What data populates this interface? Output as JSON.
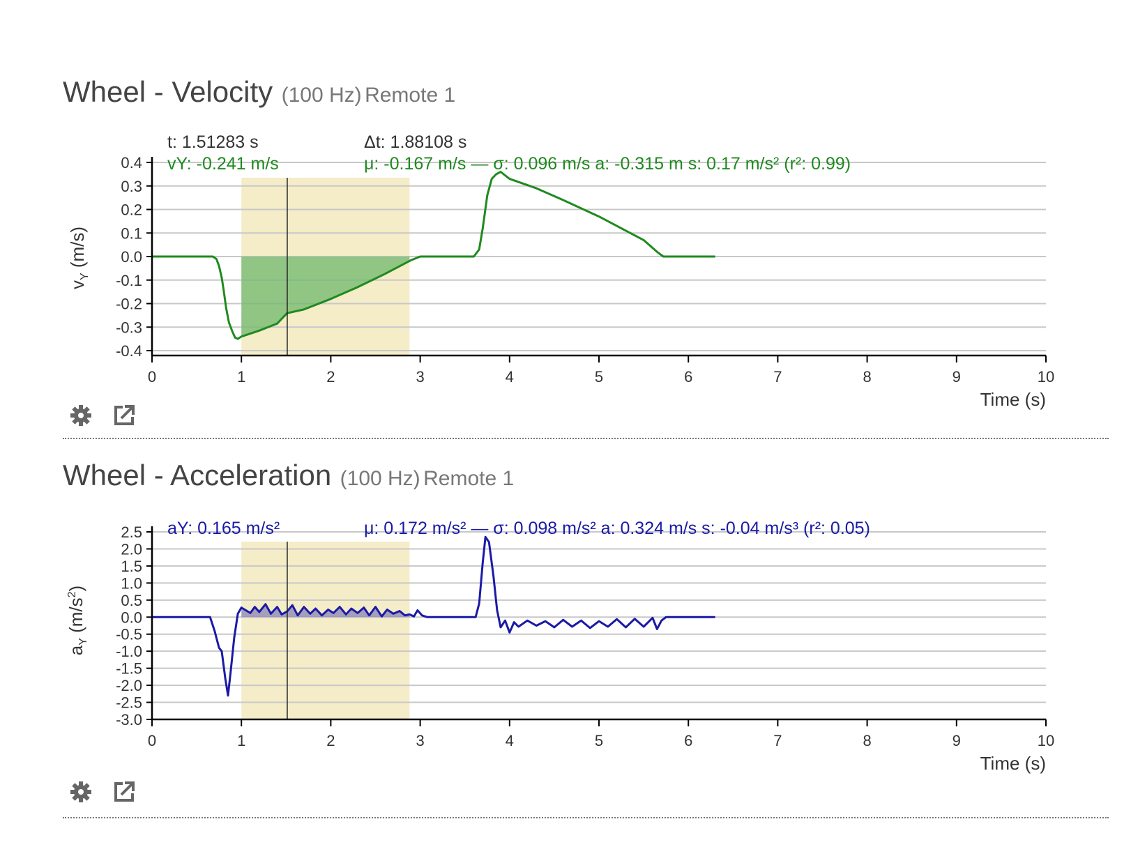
{
  "panels": [
    {
      "title": "Wheel - Velocity",
      "rate": "(100 Hz)",
      "source": "Remote 1",
      "settings_icon": "gear-icon",
      "export_icon": "export-icon"
    },
    {
      "title": "Wheel - Acceleration",
      "rate": "(100 Hz)",
      "source": "Remote 1",
      "settings_icon": "gear-icon",
      "export_icon": "export-icon"
    }
  ],
  "colors": {
    "velocity": "#1f8a1f",
    "velocity_fill": "#6db86d",
    "acceleration": "#1a1aa6",
    "acceleration_fill": "#8a86b8",
    "selection": "#f5ecc8",
    "grid": "#c8c8c8",
    "axis": "#000000",
    "cursor": "#222222",
    "label": "#333333"
  },
  "chart_data": [
    {
      "type": "line",
      "xlabel": "Time (s)",
      "ylabel": "vY (m/s)",
      "ylabel_main": "v",
      "ylabel_sub": "Y",
      "ylabel_unit": " (m/s)",
      "xlim": [
        0,
        10
      ],
      "ylim": [
        -0.42,
        0.42
      ],
      "x_ticks": [
        "0",
        "1",
        "2",
        "3",
        "4",
        "5",
        "6",
        "7",
        "8",
        "9",
        "10"
      ],
      "y_ticks": [
        {
          "value": 0.4,
          "label": "0.4"
        },
        {
          "value": 0.3,
          "label": "0.3"
        },
        {
          "value": 0.2,
          "label": "0.2"
        },
        {
          "value": 0.1,
          "label": "0.1"
        },
        {
          "value": 0.0,
          "label": "0.0"
        },
        {
          "value": -0.1,
          "label": "-0.1"
        },
        {
          "value": -0.2,
          "label": "-0.2"
        },
        {
          "value": -0.3,
          "label": "-0.3"
        },
        {
          "value": -0.4,
          "label": "-0.4"
        }
      ],
      "grid": true,
      "selection": {
        "start": 1.0,
        "end": 2.88108
      },
      "cursor_x": 1.51283,
      "readout": {
        "cursor_time": "t: 1.51283 s",
        "cursor_value": "vY: -0.241 m/s",
        "delta_time": "Δt: 1.88108 s",
        "stats": "μ: -0.167 m/s — σ: 0.096 m/s   a: -0.315 m   s: 0.17 m/s² (r²: 0.99)"
      },
      "series": [
        {
          "points": [
            [
              0,
              0
            ],
            [
              0.5,
              0
            ],
            [
              0.68,
              0
            ],
            [
              0.72,
              -0.01
            ],
            [
              0.75,
              -0.04
            ],
            [
              0.78,
              -0.09
            ],
            [
              0.8,
              -0.14
            ],
            [
              0.83,
              -0.22
            ],
            [
              0.86,
              -0.28
            ],
            [
              0.9,
              -0.32
            ],
            [
              0.93,
              -0.345
            ],
            [
              0.96,
              -0.35
            ],
            [
              1.0,
              -0.34
            ],
            [
              1.2,
              -0.315
            ],
            [
              1.4,
              -0.285
            ],
            [
              1.51,
              -0.241
            ],
            [
              1.7,
              -0.225
            ],
            [
              2.0,
              -0.18
            ],
            [
              2.3,
              -0.13
            ],
            [
              2.6,
              -0.075
            ],
            [
              2.8,
              -0.035
            ],
            [
              2.9,
              -0.015
            ],
            [
              3.0,
              0
            ],
            [
              3.6,
              0
            ],
            [
              3.66,
              0.03
            ],
            [
              3.7,
              0.12
            ],
            [
              3.75,
              0.26
            ],
            [
              3.8,
              0.33
            ],
            [
              3.85,
              0.35
            ],
            [
              3.9,
              0.36
            ],
            [
              4.0,
              0.33
            ],
            [
              4.3,
              0.29
            ],
            [
              4.6,
              0.24
            ],
            [
              5.0,
              0.17
            ],
            [
              5.3,
              0.11
            ],
            [
              5.5,
              0.07
            ],
            [
              5.65,
              0.02
            ],
            [
              5.72,
              0
            ],
            [
              6.3,
              0
            ]
          ]
        }
      ]
    },
    {
      "type": "line",
      "xlabel": "Time (s)",
      "ylabel": "aY (m/s2)",
      "ylabel_main": "a",
      "ylabel_sub": "Y",
      "ylabel_unit": " (m/s",
      "ylabel_sup": "2",
      "ylabel_close": ")",
      "xlim": [
        0,
        10
      ],
      "ylim": [
        -3.0,
        2.8
      ],
      "x_ticks": [
        "0",
        "1",
        "2",
        "3",
        "4",
        "5",
        "6",
        "7",
        "8",
        "9",
        "10"
      ],
      "y_ticks": [
        {
          "value": 2.5,
          "label": "2.5"
        },
        {
          "value": 2.0,
          "label": "2.0"
        },
        {
          "value": 1.5,
          "label": "1.5"
        },
        {
          "value": 1.0,
          "label": "1.0"
        },
        {
          "value": 0.5,
          "label": "0.5"
        },
        {
          "value": 0.0,
          "label": "0.0"
        },
        {
          "value": -0.5,
          "label": "-0.5"
        },
        {
          "value": -1.0,
          "label": "-1.0"
        },
        {
          "value": -1.5,
          "label": "-1.5"
        },
        {
          "value": -2.0,
          "label": "-2.0"
        },
        {
          "value": -2.5,
          "label": "-2.5"
        },
        {
          "value": -3.0,
          "label": "-3.0"
        }
      ],
      "grid": true,
      "selection": {
        "start": 1.0,
        "end": 2.88108
      },
      "cursor_x": 1.51283,
      "readout": {
        "cursor_time": "t: 1.51283 s",
        "cursor_value": "aY: 0.165 m/s²",
        "delta_time": "Δt: 1.88108 s",
        "stats": "μ: 0.172 m/s² — σ: 0.098 m/s²   a: 0.324 m/s   s: -0.04 m/s³ (r²: 0.05)"
      },
      "series": [
        {
          "points": [
            [
              0,
              0
            ],
            [
              0.6,
              0
            ],
            [
              0.65,
              0
            ],
            [
              0.7,
              -0.4
            ],
            [
              0.75,
              -0.9
            ],
            [
              0.78,
              -1.0
            ],
            [
              0.82,
              -1.8
            ],
            [
              0.85,
              -2.3
            ],
            [
              0.88,
              -1.6
            ],
            [
              0.92,
              -0.6
            ],
            [
              0.96,
              0.1
            ],
            [
              1.0,
              0.28
            ],
            [
              1.05,
              0.2
            ],
            [
              1.1,
              0.12
            ],
            [
              1.15,
              0.3
            ],
            [
              1.2,
              0.15
            ],
            [
              1.27,
              0.38
            ],
            [
              1.33,
              0.1
            ],
            [
              1.4,
              0.3
            ],
            [
              1.45,
              0.08
            ],
            [
              1.51,
              0.165
            ],
            [
              1.57,
              0.35
            ],
            [
              1.63,
              0.05
            ],
            [
              1.7,
              0.3
            ],
            [
              1.77,
              0.1
            ],
            [
              1.83,
              0.25
            ],
            [
              1.9,
              0.05
            ],
            [
              1.97,
              0.22
            ],
            [
              2.03,
              0.12
            ],
            [
              2.1,
              0.3
            ],
            [
              2.17,
              0.08
            ],
            [
              2.23,
              0.25
            ],
            [
              2.3,
              0.12
            ],
            [
              2.37,
              0.28
            ],
            [
              2.43,
              0.05
            ],
            [
              2.5,
              0.3
            ],
            [
              2.57,
              0.02
            ],
            [
              2.63,
              0.22
            ],
            [
              2.7,
              0.1
            ],
            [
              2.77,
              0.18
            ],
            [
              2.83,
              0.05
            ],
            [
              2.88,
              0.08
            ],
            [
              2.93,
              0.02
            ],
            [
              2.97,
              0.2
            ],
            [
              3.02,
              0.05
            ],
            [
              3.08,
              0
            ],
            [
              3.62,
              0
            ],
            [
              3.66,
              0.4
            ],
            [
              3.7,
              1.6
            ],
            [
              3.73,
              2.35
            ],
            [
              3.77,
              2.2
            ],
            [
              3.82,
              1.2
            ],
            [
              3.86,
              0.2
            ],
            [
              3.9,
              -0.3
            ],
            [
              3.95,
              -0.1
            ],
            [
              4.0,
              -0.45
            ],
            [
              4.05,
              -0.15
            ],
            [
              4.1,
              -0.28
            ],
            [
              4.2,
              -0.1
            ],
            [
              4.3,
              -0.25
            ],
            [
              4.4,
              -0.12
            ],
            [
              4.5,
              -0.3
            ],
            [
              4.6,
              -0.08
            ],
            [
              4.7,
              -0.28
            ],
            [
              4.8,
              -0.1
            ],
            [
              4.9,
              -0.32
            ],
            [
              5.0,
              -0.12
            ],
            [
              5.1,
              -0.28
            ],
            [
              5.2,
              -0.06
            ],
            [
              5.3,
              -0.3
            ],
            [
              5.4,
              -0.05
            ],
            [
              5.5,
              -0.28
            ],
            [
              5.6,
              -0.02
            ],
            [
              5.65,
              -0.35
            ],
            [
              5.7,
              -0.1
            ],
            [
              5.75,
              0
            ],
            [
              6.3,
              0
            ]
          ]
        }
      ]
    }
  ]
}
